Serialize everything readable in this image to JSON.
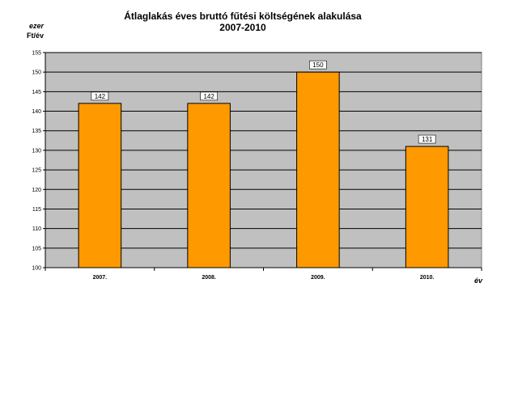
{
  "chart_data": {
    "type": "bar",
    "title": "Átlaglakás éves bruttó fűtési költségének alakulása",
    "subtitle": "2007-2010",
    "y_unit_line1": "ezer",
    "y_unit_line2": "Ft/év",
    "xlabel": "év",
    "categories": [
      "2007.",
      "2008.",
      "2009.",
      "2010."
    ],
    "values": [
      142,
      142,
      150,
      131
    ],
    "data_labels": [
      "142",
      "142",
      "150",
      "131"
    ],
    "ylim": [
      100,
      155
    ],
    "yticks": [
      "100",
      "105",
      "110",
      "115",
      "120",
      "125",
      "130",
      "135",
      "140",
      "145",
      "150",
      "155"
    ],
    "grid": true,
    "legend": "none",
    "colors": {
      "bar": "#FF9900",
      "bar_border": "#000000",
      "plot_background": "#C0C0C0",
      "gridline": "#000000"
    }
  }
}
